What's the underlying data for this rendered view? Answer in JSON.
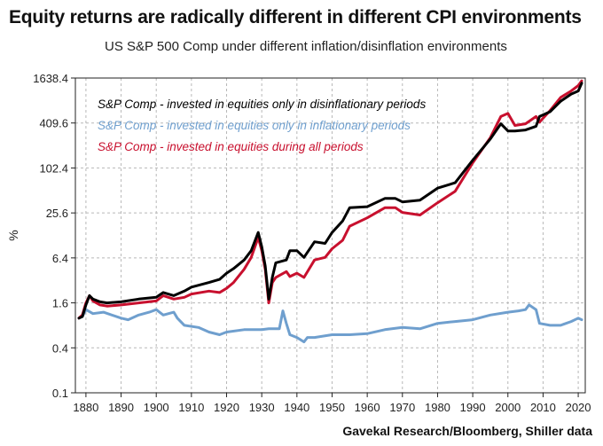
{
  "title": "Equity returns are radically different in different CPI environments",
  "subtitle": "US S&P 500 Comp under different inflation/disinflation environments",
  "source": "Gavekal Research/Bloomberg, Shiller data",
  "chart_data": {
    "type": "line",
    "yscale": "log",
    "ylabel": "%",
    "ylim": [
      0.1,
      1638.4
    ],
    "xlim": [
      1877,
      2022
    ],
    "grid": true,
    "legend_position": "top-left",
    "xticks": [
      1880,
      1890,
      1900,
      1910,
      1920,
      1930,
      1940,
      1950,
      1960,
      1970,
      1980,
      1990,
      2000,
      2010,
      2020
    ],
    "yticks": [
      0.1,
      0.4,
      1.6,
      6.4,
      25.6,
      102.4,
      409.6,
      1638.4
    ],
    "ytick_labels": [
      "0.1",
      "0.4",
      "1.6",
      "6.4",
      "25.6",
      "102.4",
      "409.6",
      "1638.4"
    ],
    "series": [
      {
        "name": "S&P Comp - invested in equities only in disinflationary periods",
        "color": "#000000",
        "x": [
          1878,
          1879,
          1880,
          1881,
          1882,
          1884,
          1886,
          1890,
          1895,
          1900,
          1902,
          1905,
          1908,
          1910,
          1915,
          1918,
          1920,
          1922,
          1925,
          1927,
          1929,
          1930,
          1931,
          1932,
          1933,
          1934,
          1937,
          1938,
          1940,
          1942,
          1945,
          1948,
          1950,
          1953,
          1955,
          1960,
          1965,
          1968,
          1970,
          1975,
          1980,
          1985,
          1990,
          1995,
          1998,
          2000,
          2002,
          2005,
          2008,
          2009,
          2012,
          2015,
          2018,
          2020,
          2021
        ],
        "y": [
          1.0,
          1.05,
          1.5,
          2.0,
          1.8,
          1.65,
          1.6,
          1.65,
          1.8,
          1.9,
          2.2,
          2.0,
          2.3,
          2.6,
          3.0,
          3.3,
          4.0,
          4.6,
          6.0,
          8.0,
          14.0,
          9.0,
          5.0,
          1.8,
          3.5,
          5.5,
          6.0,
          8.0,
          8.0,
          6.5,
          10.5,
          10.0,
          14.0,
          20.0,
          30.0,
          31.0,
          40.0,
          40.0,
          36.0,
          38.0,
          55.0,
          65.0,
          130.0,
          250.0,
          400.0,
          320.0,
          320.0,
          330.0,
          370.0,
          500.0,
          580.0,
          800.0,
          1000.0,
          1100.0,
          1400.0
        ]
      },
      {
        "name": "S&P Comp - invested in equities only in inflationary periods",
        "color": "#6f9fce",
        "x": [
          1878,
          1879,
          1880,
          1882,
          1885,
          1890,
          1892,
          1895,
          1898,
          1900,
          1902,
          1905,
          1906,
          1908,
          1912,
          1915,
          1918,
          1920,
          1925,
          1930,
          1932,
          1935,
          1936,
          1937,
          1938,
          1940,
          1942,
          1943,
          1945,
          1950,
          1955,
          1960,
          1965,
          1970,
          1975,
          1980,
          1985,
          1990,
          1995,
          2000,
          2003,
          2005,
          2006,
          2008,
          2009,
          2012,
          2015,
          2018,
          2020,
          2021
        ],
        "y": [
          1.0,
          1.05,
          1.3,
          1.15,
          1.2,
          1.0,
          0.95,
          1.1,
          1.2,
          1.3,
          1.1,
          1.2,
          1.0,
          0.8,
          0.75,
          0.65,
          0.6,
          0.65,
          0.7,
          0.7,
          0.72,
          0.72,
          1.25,
          0.85,
          0.6,
          0.55,
          0.48,
          0.55,
          0.55,
          0.6,
          0.6,
          0.62,
          0.7,
          0.75,
          0.72,
          0.85,
          0.9,
          0.95,
          1.1,
          1.2,
          1.25,
          1.3,
          1.5,
          1.3,
          0.85,
          0.8,
          0.8,
          0.9,
          1.0,
          0.95
        ]
      },
      {
        "name": "S&P Comp - invested in equities during all periods",
        "color": "#c8102e",
        "x": [
          1878,
          1879,
          1880,
          1881,
          1882,
          1884,
          1886,
          1890,
          1895,
          1900,
          1902,
          1905,
          1908,
          1910,
          1915,
          1918,
          1920,
          1922,
          1925,
          1927,
          1929,
          1930,
          1931,
          1932,
          1933,
          1934,
          1937,
          1938,
          1940,
          1942,
          1945,
          1948,
          1950,
          1953,
          1955,
          1960,
          1965,
          1968,
          1970,
          1975,
          1980,
          1985,
          1990,
          1995,
          1998,
          2000,
          2002,
          2005,
          2008,
          2009,
          2012,
          2015,
          2018,
          2020,
          2021
        ],
        "y": [
          1.0,
          1.1,
          1.6,
          2.0,
          1.7,
          1.5,
          1.45,
          1.5,
          1.6,
          1.7,
          2.0,
          1.8,
          1.9,
          2.1,
          2.3,
          2.2,
          2.5,
          3.0,
          4.5,
          6.5,
          12.0,
          8.0,
          4.5,
          1.6,
          3.0,
          3.5,
          4.2,
          3.6,
          4.0,
          3.5,
          6.0,
          6.5,
          8.5,
          11.0,
          17.0,
          22.0,
          30.0,
          30.0,
          26.0,
          24.0,
          35.0,
          50.0,
          120.0,
          260.0,
          500.0,
          550.0,
          380.0,
          400.0,
          500.0,
          420.0,
          600.0,
          900.0,
          1100.0,
          1300.0,
          1500.0
        ]
      }
    ]
  }
}
